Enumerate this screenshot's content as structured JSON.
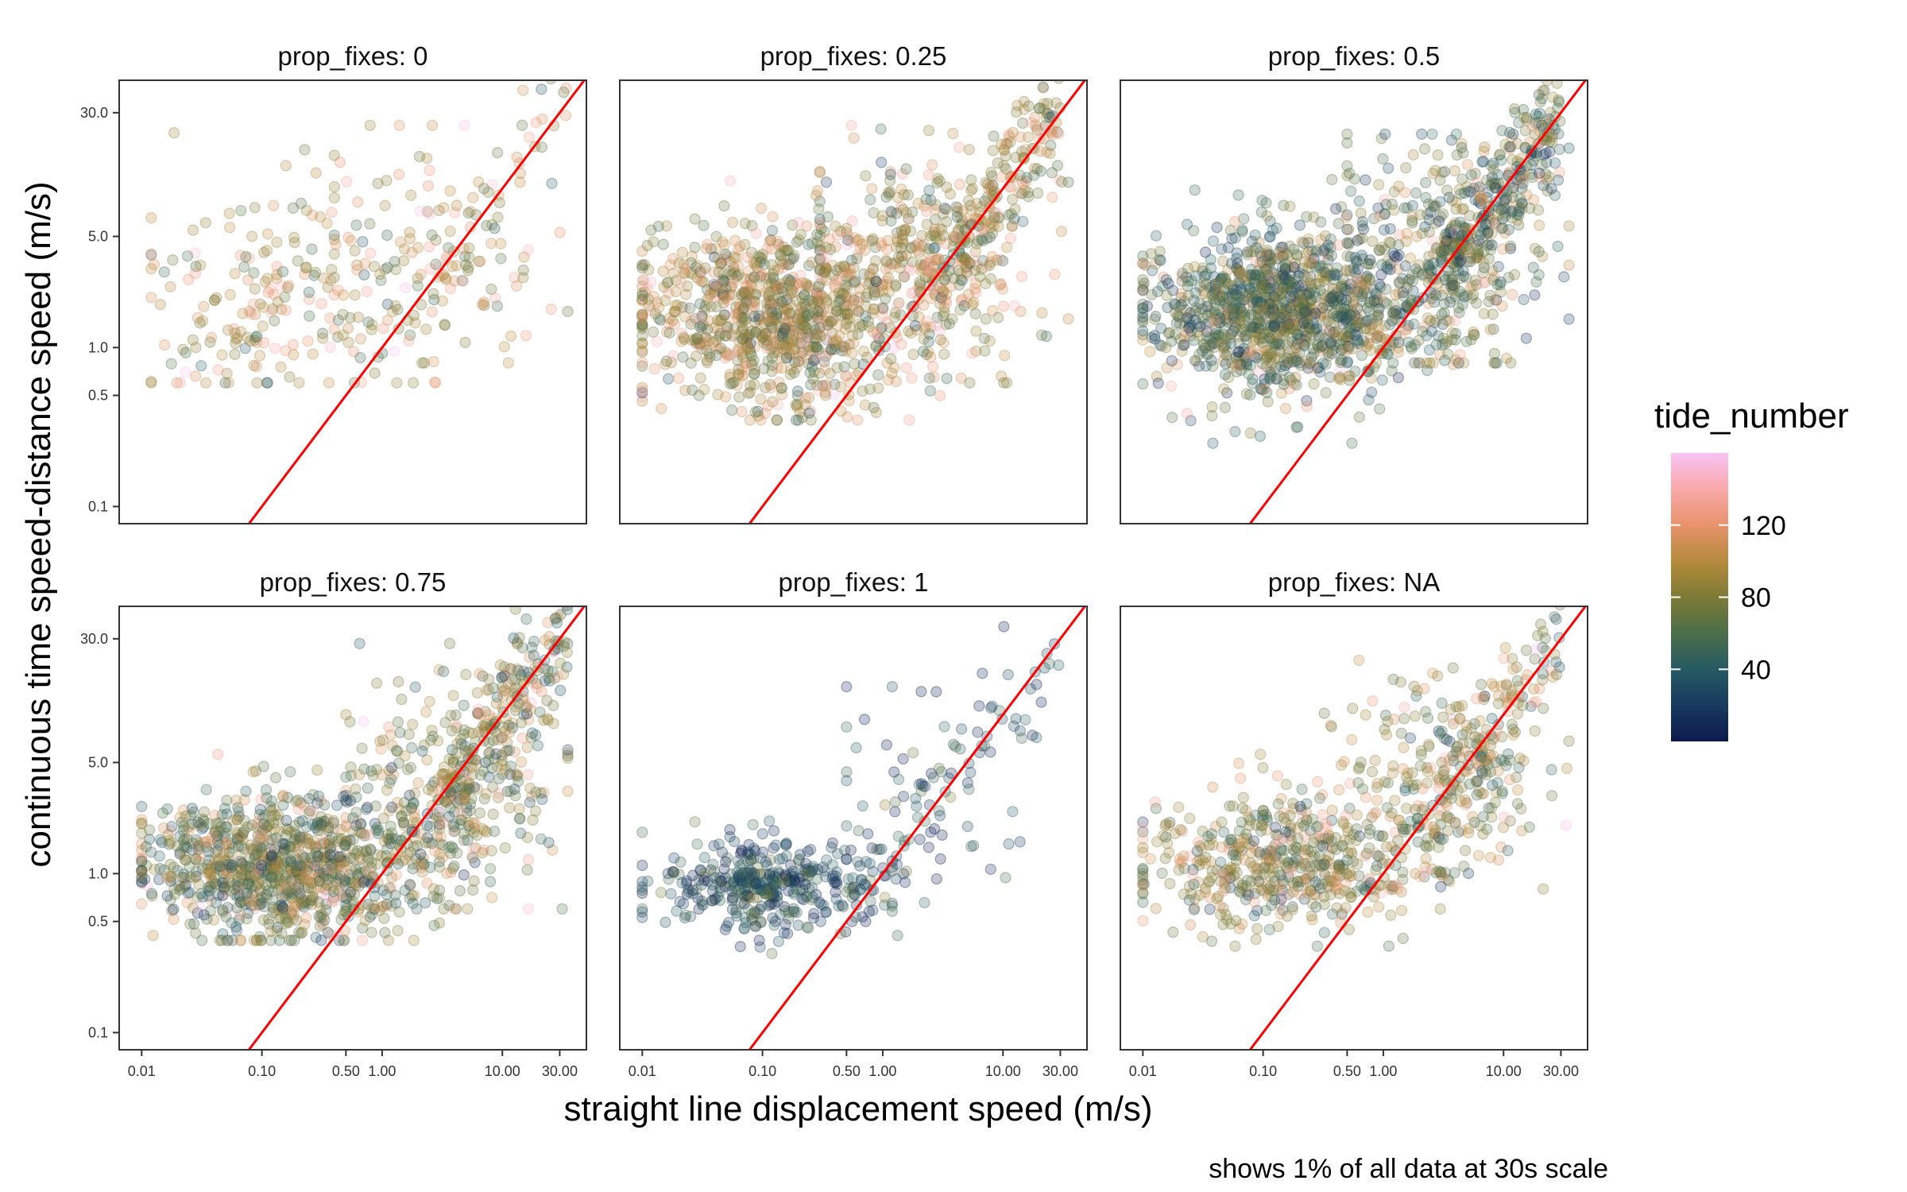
{
  "chart_data": {
    "type": "scatter",
    "layout": "faceted-3x2",
    "scale": "log10-both-axes",
    "xlabel": "straight line displacement speed (m/s)",
    "ylabel": "continuous time speed-distance speed (m/s)",
    "caption": "shows 1% of all data at 30s scale",
    "x_ticks": [
      0.01,
      0.1,
      0.5,
      1,
      10,
      30
    ],
    "x_tick_labels": [
      "0.01",
      "0.10",
      "0.50",
      "1.00",
      "10.00",
      "30.00"
    ],
    "y_ticks": [
      0.1,
      0.5,
      1,
      5,
      30
    ],
    "y_tick_labels": [
      "0.1",
      "0.5",
      "1.0",
      "5.0",
      "30.0"
    ],
    "xlim": [
      0.0065,
      50
    ],
    "ylim": [
      0.078,
      48
    ],
    "reference_line": {
      "type": "y = x",
      "color": "#ff0000"
    },
    "point_alpha": 0.25,
    "colorbar": {
      "title": "tide_number",
      "range": [
        0,
        160
      ],
      "tick_values": [
        40,
        80,
        120
      ],
      "tick_labels": [
        "40",
        "80",
        "120"
      ],
      "stops": [
        {
          "value": 0,
          "color": "#0c1a4e"
        },
        {
          "value": 20,
          "color": "#173a5e"
        },
        {
          "value": 40,
          "color": "#255a63"
        },
        {
          "value": 60,
          "color": "#4c6e49"
        },
        {
          "value": 80,
          "color": "#7d7a35"
        },
        {
          "value": 100,
          "color": "#b68a3c"
        },
        {
          "value": 120,
          "color": "#e8926c"
        },
        {
          "value": 140,
          "color": "#f9a9a9"
        },
        {
          "value": 160,
          "color": "#f8c3f4"
        }
      ]
    },
    "facets": [
      {
        "title": "prop_fixes: 0",
        "n_points": 360,
        "clusters": [
          {
            "weight": 0.6,
            "x_center": 0.15,
            "x_spread": 0.6,
            "y_center": 2.0,
            "y_spread": 0.35,
            "x_min": 0.012,
            "x_max": 3,
            "y_min": 0.6,
            "y_max": 30
          },
          {
            "weight": 0.4,
            "x_center": 3.0,
            "x_spread": 0.5,
            "y_center": 3.5,
            "y_spread": 0.35,
            "x_min": 0.4,
            "x_max": 35,
            "y_min": 0.8,
            "y_max": 25
          }
        ],
        "diag_band": {
          "weight": 0.12,
          "x_min": 3,
          "x_max": 35,
          "spread": 0.18
        },
        "color_mix": {
          "mean": 95,
          "sd": 25
        }
      },
      {
        "title": "prop_fixes: 0.25",
        "n_points": 1500,
        "clusters": [
          {
            "weight": 0.75,
            "x_center": 0.12,
            "x_spread": 0.55,
            "y_center": 1.6,
            "y_spread": 0.28,
            "x_min": 0.01,
            "x_max": 3,
            "y_min": 0.35,
            "y_max": 20
          },
          {
            "weight": 0.25,
            "x_center": 2.0,
            "x_spread": 0.5,
            "y_center": 3.5,
            "y_spread": 0.35,
            "x_min": 0.3,
            "x_max": 35,
            "y_min": 0.6,
            "y_max": 25
          }
        ],
        "diag_band": {
          "weight": 0.2,
          "x_min": 2,
          "x_max": 30,
          "spread": 0.2
        },
        "color_mix": {
          "mean": 90,
          "sd": 28
        }
      },
      {
        "title": "prop_fixes: 0.5",
        "n_points": 1800,
        "clusters": [
          {
            "weight": 0.78,
            "x_center": 0.15,
            "x_spread": 0.55,
            "y_center": 1.7,
            "y_spread": 0.25,
            "x_min": 0.01,
            "x_max": 4,
            "y_min": 0.25,
            "y_max": 15
          },
          {
            "weight": 0.22,
            "x_center": 3.0,
            "x_spread": 0.45,
            "y_center": 4.0,
            "y_spread": 0.35,
            "x_min": 0.5,
            "x_max": 35,
            "y_min": 0.8,
            "y_max": 22
          }
        ],
        "diag_band": {
          "weight": 0.18,
          "x_min": 3,
          "x_max": 30,
          "spread": 0.2
        },
        "color_mix": {
          "mean": 65,
          "sd": 30
        }
      },
      {
        "title": "prop_fixes: 0.75",
        "n_points": 1500,
        "clusters": [
          {
            "weight": 0.78,
            "x_center": 0.15,
            "x_spread": 0.55,
            "y_center": 1.1,
            "y_spread": 0.22,
            "x_min": 0.01,
            "x_max": 3,
            "y_min": 0.38,
            "y_max": 12
          },
          {
            "weight": 0.22,
            "x_center": 3.0,
            "x_spread": 0.45,
            "y_center": 3.0,
            "y_spread": 0.35,
            "x_min": 0.5,
            "x_max": 35,
            "y_min": 0.6,
            "y_max": 28
          }
        ],
        "diag_band": {
          "weight": 0.18,
          "x_min": 3,
          "x_max": 35,
          "spread": 0.2
        },
        "color_mix": {
          "mean": 75,
          "sd": 30
        }
      },
      {
        "title": "prop_fixes: 1",
        "n_points": 520,
        "clusters": [
          {
            "weight": 0.85,
            "x_center": 0.12,
            "x_spread": 0.45,
            "y_center": 0.85,
            "y_spread": 0.14,
            "x_min": 0.01,
            "x_max": 1.2,
            "y_min": 0.3,
            "y_max": 2.5
          },
          {
            "weight": 0.15,
            "x_center": 2.0,
            "x_spread": 0.5,
            "y_center": 2.5,
            "y_spread": 0.35,
            "x_min": 0.5,
            "x_max": 30,
            "y_min": 0.5,
            "y_max": 15
          }
        ],
        "diag_band": {
          "weight": 0.08,
          "x_min": 1,
          "x_max": 30,
          "spread": 0.22
        },
        "color_mix": {
          "mean": 30,
          "sd": 25
        }
      },
      {
        "title": "prop_fixes: NA",
        "n_points": 900,
        "clusters": [
          {
            "weight": 0.72,
            "x_center": 0.15,
            "x_spread": 0.55,
            "y_center": 1.2,
            "y_spread": 0.22,
            "x_min": 0.01,
            "x_max": 3,
            "y_min": 0.35,
            "y_max": 8
          },
          {
            "weight": 0.28,
            "x_center": 3.5,
            "x_spread": 0.45,
            "y_center": 3.5,
            "y_spread": 0.35,
            "x_min": 0.3,
            "x_max": 35,
            "y_min": 0.8,
            "y_max": 22
          }
        ],
        "diag_band": {
          "weight": 0.15,
          "x_min": 3,
          "x_max": 30,
          "spread": 0.2
        },
        "color_mix": {
          "mean": 80,
          "sd": 28
        }
      }
    ]
  }
}
